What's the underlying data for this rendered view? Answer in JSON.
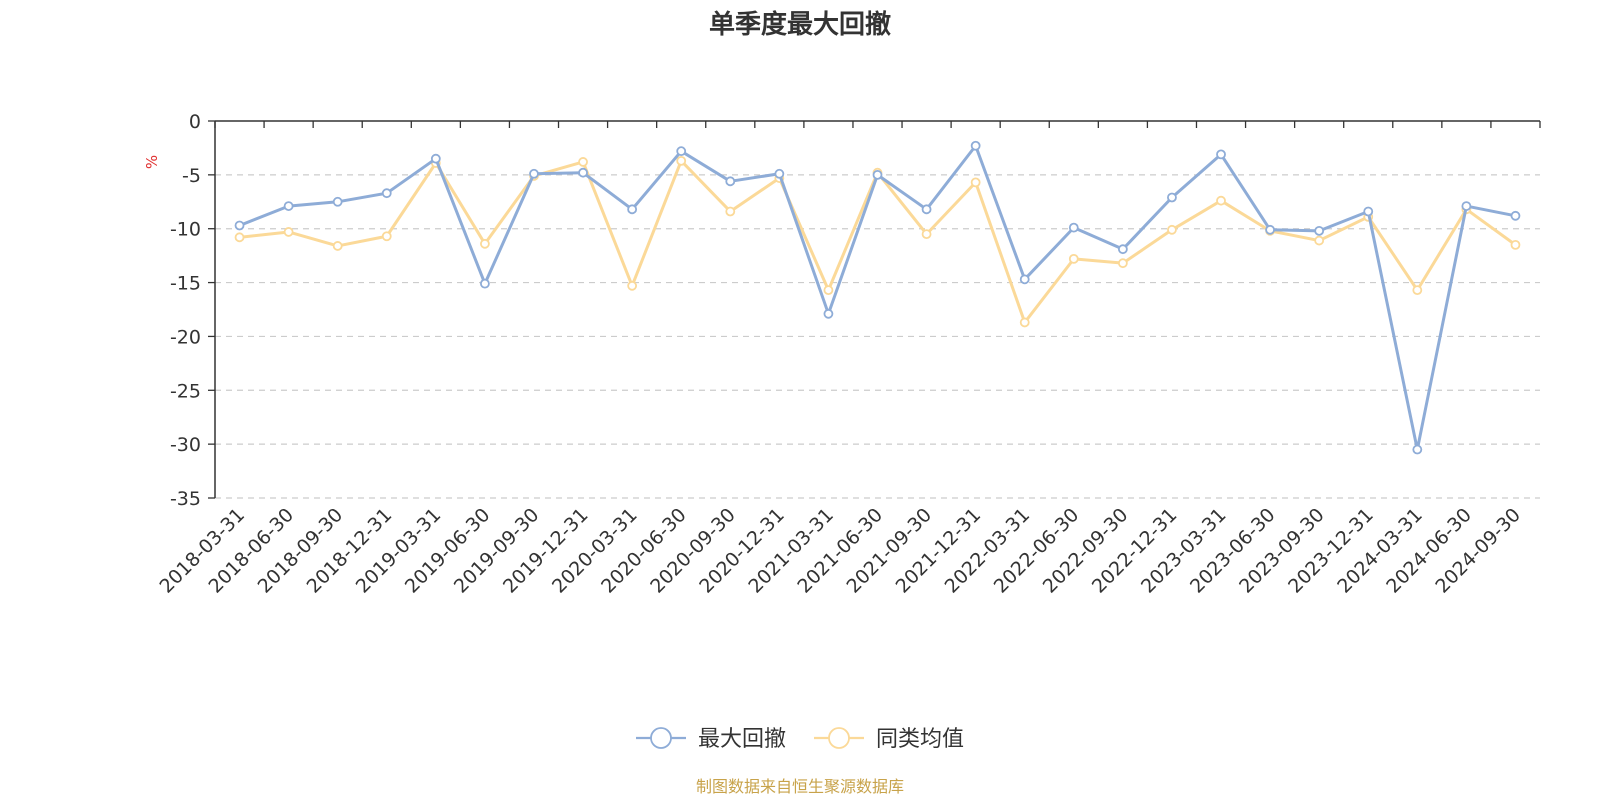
{
  "chart_data": {
    "type": "line",
    "title": "单季度最大回撤",
    "ylabel": "%",
    "xlabel": "",
    "ylim": [
      -35,
      0
    ],
    "yticks": [
      0,
      -5,
      -10,
      -15,
      -20,
      -25,
      -30,
      -35
    ],
    "grid": true,
    "legend_position": "bottom-center",
    "categories": [
      "2018-03-31",
      "2018-06-30",
      "2018-09-30",
      "2018-12-31",
      "2019-03-31",
      "2019-06-30",
      "2019-09-30",
      "2019-12-31",
      "2020-03-31",
      "2020-06-30",
      "2020-09-30",
      "2020-12-31",
      "2021-03-31",
      "2021-06-30",
      "2021-09-30",
      "2021-12-31",
      "2022-03-31",
      "2022-06-30",
      "2022-09-30",
      "2022-12-31",
      "2023-03-31",
      "2023-06-30",
      "2023-09-30",
      "2023-12-31",
      "2024-03-31",
      "2024-06-30",
      "2024-09-30"
    ],
    "series": [
      {
        "name": "最大回撤",
        "color": "#8eacd7",
        "values": [
          -9.7,
          -7.9,
          -7.5,
          -6.7,
          -3.5,
          -15.1,
          -4.9,
          -4.8,
          -8.2,
          -2.8,
          -5.6,
          -4.9,
          -17.9,
          -5.0,
          -8.2,
          -2.3,
          -14.7,
          -9.9,
          -11.9,
          -7.1,
          -3.1,
          -10.1,
          -10.2,
          -8.4,
          -30.5,
          -7.9,
          -8.8
        ]
      },
      {
        "name": "同类均值",
        "color": "#fbd998",
        "values": [
          -10.8,
          -10.3,
          -11.6,
          -10.7,
          -3.9,
          -11.4,
          -5.1,
          -3.8,
          -15.3,
          -3.7,
          -8.4,
          -5.3,
          -15.7,
          -4.8,
          -10.5,
          -5.7,
          -18.7,
          -12.8,
          -13.2,
          -10.1,
          -7.4,
          -10.2,
          -11.1,
          -8.9,
          -15.7,
          -8.2,
          -11.5
        ]
      }
    ]
  },
  "source": {
    "text": "制图数据来自恒生聚源数据库",
    "color": "#c8a34a"
  },
  "colors": {
    "unit_label": "#e03030",
    "axis": "#333333",
    "grid": "#cccccc"
  }
}
